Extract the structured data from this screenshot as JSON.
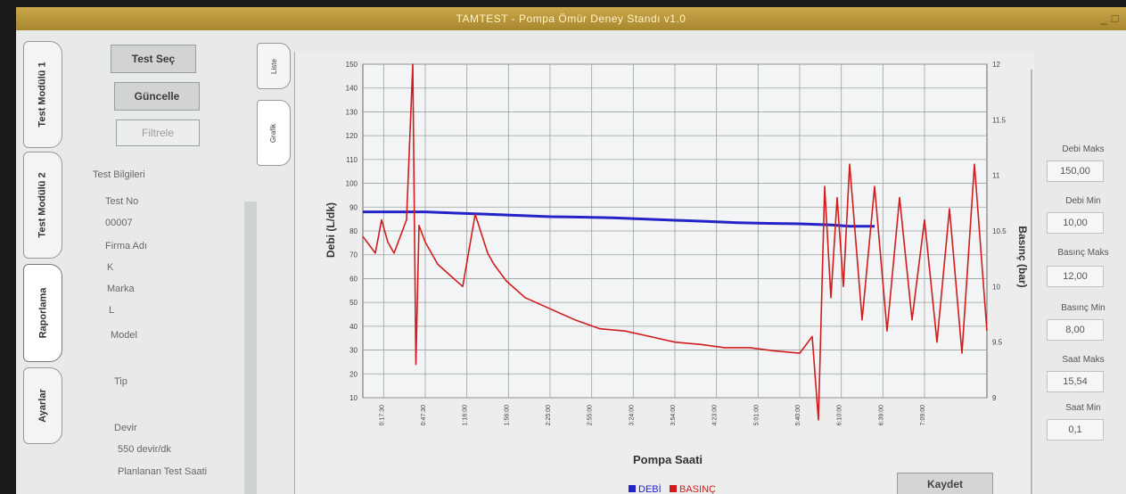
{
  "window": {
    "title": "TAMTEST - Pompa Ömür Deney Standı v1.0",
    "controls": "_ □"
  },
  "side_tabs": [
    "Test Modülü 1",
    "Test Modülü 2",
    "Raporlama",
    "Ayarlar"
  ],
  "left_panel": {
    "test_sec": "Test Seç",
    "guncelle": "Güncelle",
    "filtrele": "Filtrele",
    "section_title": "Test Bilgileri",
    "fields": [
      {
        "label": "Test No",
        "value": "00007"
      },
      {
        "label": "Firma Adı",
        "value": "K"
      },
      {
        "label": "Marka",
        "value": "L"
      },
      {
        "label": "Model",
        "value": ""
      },
      {
        "label": "Tip",
        "value": ""
      },
      {
        "label": "Devir",
        "value": "550 devir/dk"
      },
      {
        "label": "Planlanan Test Saati",
        "value": ""
      }
    ]
  },
  "inner_tabs": [
    "Liste",
    "Grafik"
  ],
  "chart_data": {
    "type": "line",
    "title": "",
    "xlabel": "Pompa Saati",
    "ylabel": "Debi (L/dk)",
    "ylabel_right": "Basınç (bar)",
    "ylim": [
      10,
      150
    ],
    "y_ticks": [
      10,
      20,
      30,
      40,
      50,
      60,
      70,
      80,
      90,
      100,
      110,
      120,
      130,
      140,
      150
    ],
    "ylim_right": [
      9,
      12
    ],
    "y2_ticks": [
      9,
      9.5,
      10,
      10.5,
      11,
      11.5,
      12
    ],
    "x_tick_labels": [
      "0:17:30",
      "0:47:30",
      "1:16:00",
      "1:56:00",
      "2:25:00",
      "2:55:00",
      "3:24:00",
      "3:54:00",
      "4:23:00",
      "5:01:00",
      "5:40:00",
      "6:10:00",
      "6:39:00",
      "7:09:00"
    ],
    "grid": true,
    "legend_position": "bottom",
    "series": [
      {
        "name": "DEBİ",
        "color": "#2323c8",
        "x": [
          0,
          5,
          10,
          15,
          20,
          25,
          30,
          35,
          40,
          45,
          50,
          55,
          60,
          65,
          70,
          75,
          78,
          82
        ],
        "values": [
          88,
          88,
          88,
          87.5,
          87,
          86.5,
          86,
          85.8,
          85.5,
          85,
          84.5,
          84,
          83.5,
          83.2,
          83,
          82.5,
          82,
          82
        ]
      },
      {
        "name": "BASINÇ",
        "color": "#d21c1c",
        "x": [
          0,
          2,
          3,
          4,
          5,
          7,
          8,
          8.5,
          9,
          10,
          12,
          14,
          16,
          18,
          20,
          21,
          23,
          26,
          30,
          34,
          38,
          42,
          46,
          50,
          54,
          58,
          62,
          66,
          70,
          72,
          73,
          74,
          75,
          76,
          77,
          78,
          80,
          82,
          84,
          86,
          88,
          90,
          92,
          94,
          96,
          98,
          100
        ],
        "values": [
          10.45,
          10.3,
          10.6,
          10.4,
          10.3,
          10.6,
          12,
          9.3,
          10.55,
          10.4,
          10.2,
          10.1,
          10.0,
          10.65,
          10.3,
          10.2,
          10.05,
          9.9,
          9.8,
          9.7,
          9.62,
          9.6,
          9.55,
          9.5,
          9.48,
          9.45,
          9.45,
          9.42,
          9.4,
          9.55,
          8.8,
          10.9,
          9.9,
          10.8,
          10.0,
          11.1,
          9.7,
          10.9,
          9.6,
          10.8,
          9.7,
          10.6,
          9.5,
          10.7,
          9.4,
          11.1,
          9.6
        ]
      }
    ]
  },
  "legend": {
    "items": [
      "DEBİ",
      "BASINÇ"
    ]
  },
  "right_panel": {
    "fields": [
      {
        "label": "Debi Maks",
        "value": "150,00"
      },
      {
        "label": "Debi Min",
        "value": "10,00"
      },
      {
        "label": "Basınç Maks",
        "value": "12,00"
      },
      {
        "label": "Basınç Min",
        "value": "8,00"
      },
      {
        "label": "Saat Maks",
        "value": "15,54"
      },
      {
        "label": "Saat Min",
        "value": "0,1"
      }
    ]
  },
  "kaydet_label": "Kaydet"
}
